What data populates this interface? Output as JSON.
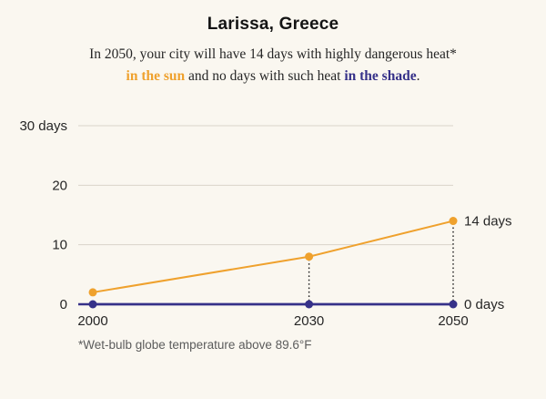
{
  "title": "Larissa, Greece",
  "subtitle": {
    "line1": "In 2050, your city will have 14 days with highly dangerous heat*",
    "sun": "in the sun",
    "mid": " and no days with such heat ",
    "shade": "in the shade",
    "end": "."
  },
  "footnote": "*Wet-bulb globe temperature above 89.6°F",
  "colors": {
    "sun": "#EFA12D",
    "shade": "#363189",
    "background": "#FAF7F0",
    "grid": "#D9D4CA",
    "guide": "#1F1F1F",
    "axis_text": "#262626",
    "footnote_text": "#5C5C5C"
  },
  "chart_data": {
    "type": "line",
    "x": [
      2000,
      2030,
      2050
    ],
    "xtick_labels": [
      "2000",
      "2030",
      "2050"
    ],
    "series": [
      {
        "name": "days with highly dangerous heat in the shade",
        "values": [
          0,
          0,
          0
        ],
        "color": "#363189",
        "end_label": "0 days"
      },
      {
        "name": "days with highly dangerous heat in the sun",
        "values": [
          2,
          8,
          14
        ],
        "color": "#EFA12D",
        "end_label": "14 days"
      }
    ],
    "ylim": [
      0,
      30
    ],
    "yticks": [
      0,
      10,
      20,
      30
    ],
    "ytick_labels": [
      "0",
      "10",
      "20",
      "30 days"
    ],
    "grid": true,
    "legend": "inline-end-labels",
    "dotted_guides": [
      {
        "x": 2030,
        "to_value": 8
      },
      {
        "x": 2050,
        "to_value": 14
      }
    ]
  }
}
